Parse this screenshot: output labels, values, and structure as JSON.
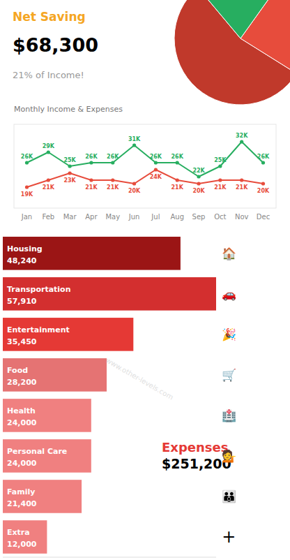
{
  "chart_data": [
    {
      "type": "pie",
      "annotations": [
        {
          "text": "Net Saving",
          "color": "#f5a623"
        },
        {
          "text": "$68,300"
        },
        {
          "text": "21% of Income!"
        }
      ],
      "values": [
        55,
        24,
        21
      ],
      "colors": [
        "#c0392b",
        "#e74c3c",
        "#27ae60"
      ]
    },
    {
      "type": "line",
      "title": "Monthly Income & Expenses",
      "categories": [
        "Jan",
        "Feb",
        "Mar",
        "Apr",
        "May",
        "Jun",
        "Jul",
        "Aug",
        "Sep",
        "Oct",
        "Nov",
        "Dec"
      ],
      "series": [
        {
          "color": "#27ae60",
          "marker": "circle",
          "values": [
            26,
            29,
            25,
            26,
            26,
            31,
            26,
            26,
            22,
            25,
            32,
            26
          ],
          "value_labels": [
            "26K",
            "29K",
            "25K",
            "26K",
            "26K",
            "31K",
            "26K",
            "26K",
            "22K",
            "25K",
            "32K",
            "26K"
          ]
        },
        {
          "color": "#e74c3c",
          "marker": "circle",
          "values": [
            19,
            21,
            23,
            21,
            21,
            20,
            24,
            21,
            20,
            21,
            21,
            20
          ],
          "value_labels": [
            "19K",
            "21K",
            "23K",
            "21K",
            "21K",
            "20K",
            "24K",
            "21K",
            "20K",
            "21K",
            "21K",
            "20K"
          ]
        }
      ],
      "ylim": [
        13,
        37
      ],
      "tick_labels": "x",
      "data_labels": true,
      "grid": false
    },
    {
      "type": "bar",
      "orientation": "horizontal",
      "categories": [
        "Housing",
        "Transportation",
        "Entertainment",
        "Food",
        "Health",
        "Personal Care",
        "Family",
        "Extra"
      ],
      "values": [
        48240,
        57910,
        35450,
        28200,
        24000,
        24000,
        21400,
        12000
      ],
      "value_labels": [
        "48,240",
        "57,910",
        "35,450",
        "28,200",
        "24,000",
        "24,000",
        "21,400",
        "12,000"
      ],
      "colors": [
        "#9b1515",
        "#d32f2f",
        "#e53935",
        "#e57373",
        "#f08080",
        "#f08080",
        "#f08080",
        "#f08080"
      ],
      "xlim": [
        0,
        57910
      ],
      "tick_labels": false,
      "data_labels": true,
      "annotations": [
        {
          "text": "Expenses",
          "color": "#e53935"
        },
        {
          "text": "$251,200"
        },
        {
          "text": "www.other-levels.com"
        },
        {
          "text": "🏠"
        },
        {
          "text": "🚗"
        },
        {
          "text": "🎉"
        },
        {
          "text": "🛒"
        },
        {
          "text": "🏥"
        },
        {
          "text": "💁"
        },
        {
          "text": "👪"
        },
        {
          "text": "+"
        }
      ]
    }
  ]
}
